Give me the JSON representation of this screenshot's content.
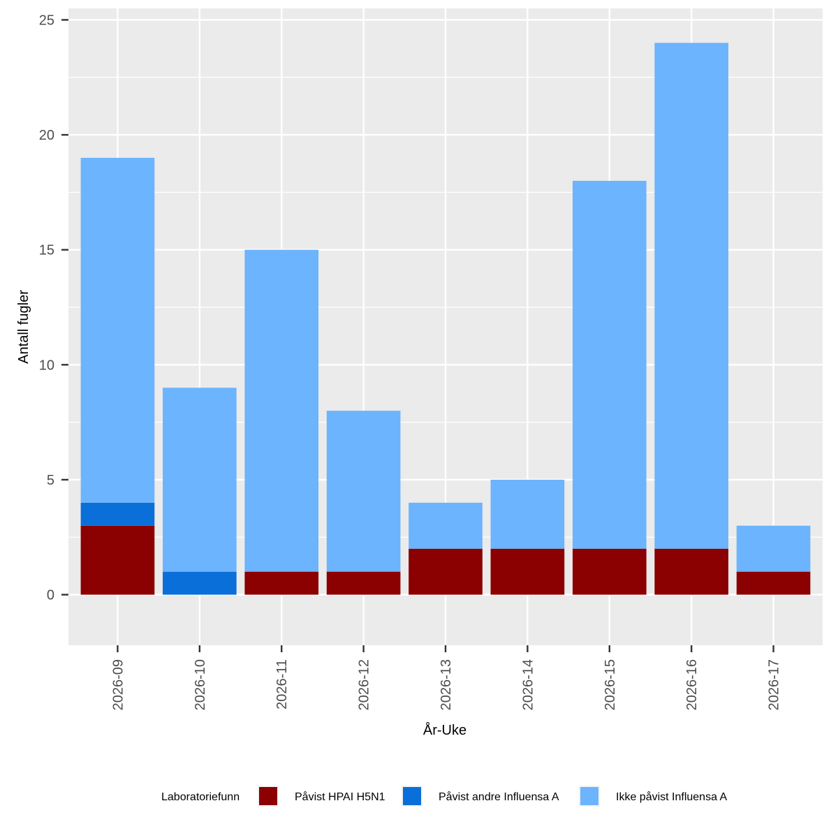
{
  "chart_data": {
    "type": "bar",
    "stacked": true,
    "title": "",
    "xlabel": "År-Uke",
    "ylabel": "Antall fugler",
    "ylim": [
      -2.2,
      25.5
    ],
    "yticks": [
      0,
      5,
      10,
      15,
      20,
      25
    ],
    "grid": true,
    "legend_position": "bottom",
    "categories": [
      "2026-09",
      "2026-10",
      "2026-11",
      "2026-12",
      "2026-13",
      "2026-14",
      "2026-15",
      "2026-16",
      "2026-17"
    ],
    "series": [
      {
        "name": "Påvist HPAI H5N1",
        "color": "#8b0000",
        "values": [
          3,
          0,
          1,
          1,
          2,
          2,
          2,
          2,
          1
        ]
      },
      {
        "name": "Påvist andre Influensa A",
        "color": "#0b6fd9",
        "values": [
          1,
          1,
          0,
          0,
          0,
          0,
          0,
          0,
          0
        ]
      },
      {
        "name": "Ikke påvist Influensa A",
        "color": "#6cb4fd",
        "values": [
          15,
          8,
          14,
          7,
          2,
          3,
          16,
          22,
          2
        ]
      }
    ],
    "legend_title": "Laboratoriefunn",
    "panel_background": "#ebebeb",
    "grid_color": "#ffffff"
  }
}
